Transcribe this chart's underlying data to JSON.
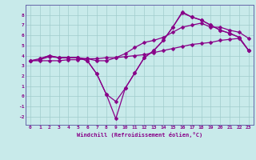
{
  "xlabel": "Windchill (Refroidissement éolien,°C)",
  "background_color": "#c8eaea",
  "grid_color": "#a0cccc",
  "line_color": "#880088",
  "spine_color": "#6666aa",
  "xlim": [
    -0.5,
    23.5
  ],
  "ylim": [
    -2.8,
    9.0
  ],
  "xticks": [
    0,
    1,
    2,
    3,
    4,
    5,
    6,
    7,
    8,
    9,
    10,
    11,
    12,
    13,
    14,
    15,
    16,
    17,
    18,
    19,
    20,
    21,
    22,
    23
  ],
  "yticks": [
    -2,
    -1,
    0,
    1,
    2,
    3,
    4,
    5,
    6,
    7,
    8
  ],
  "curve1_x": [
    0,
    1,
    2,
    3,
    4,
    5,
    6,
    7,
    8,
    9,
    10,
    11,
    12,
    13,
    14,
    15,
    16,
    17,
    18,
    19,
    20,
    21,
    22,
    23
  ],
  "curve1_y": [
    3.5,
    3.5,
    3.5,
    3.5,
    3.6,
    3.6,
    3.7,
    3.7,
    3.8,
    3.8,
    3.9,
    4.0,
    4.1,
    4.3,
    4.5,
    4.7,
    4.9,
    5.1,
    5.2,
    5.3,
    5.5,
    5.6,
    5.7,
    4.5
  ],
  "curve2_x": [
    0,
    1,
    2,
    3,
    4,
    5,
    6,
    7,
    8,
    9,
    10,
    11,
    12,
    13,
    14,
    15,
    16,
    17,
    18,
    19,
    20,
    21,
    22,
    23
  ],
  "curve2_y": [
    3.5,
    3.6,
    3.9,
    3.8,
    3.8,
    3.8,
    3.7,
    3.5,
    3.5,
    3.8,
    4.2,
    4.8,
    5.3,
    5.5,
    5.8,
    6.3,
    6.8,
    7.0,
    7.2,
    6.8,
    6.8,
    6.5,
    6.3,
    5.7
  ],
  "curve3_x": [
    0,
    1,
    2,
    3,
    4,
    5,
    6,
    7,
    8,
    9,
    10,
    11,
    12,
    13,
    14,
    15,
    16,
    17,
    18,
    19,
    20,
    21,
    22,
    23
  ],
  "curve3_y": [
    3.5,
    3.7,
    4.0,
    3.8,
    3.8,
    3.8,
    3.5,
    2.2,
    0.2,
    -0.5,
    0.8,
    2.3,
    3.8,
    4.5,
    5.5,
    6.8,
    8.2,
    7.8,
    7.5,
    7.0,
    6.5,
    6.2,
    5.8,
    4.5
  ],
  "curve4_x": [
    1,
    2,
    3,
    4,
    5,
    6,
    7,
    8,
    9,
    10,
    11,
    12,
    13,
    14,
    15,
    16,
    17,
    18,
    19,
    20,
    21,
    22,
    23
  ],
  "curve4_y": [
    3.7,
    4.0,
    3.8,
    3.8,
    3.8,
    3.5,
    2.2,
    0.2,
    -2.2,
    0.8,
    2.3,
    3.8,
    4.5,
    5.5,
    6.8,
    8.3,
    7.8,
    7.5,
    7.0,
    6.5,
    6.2,
    5.8,
    4.5
  ]
}
